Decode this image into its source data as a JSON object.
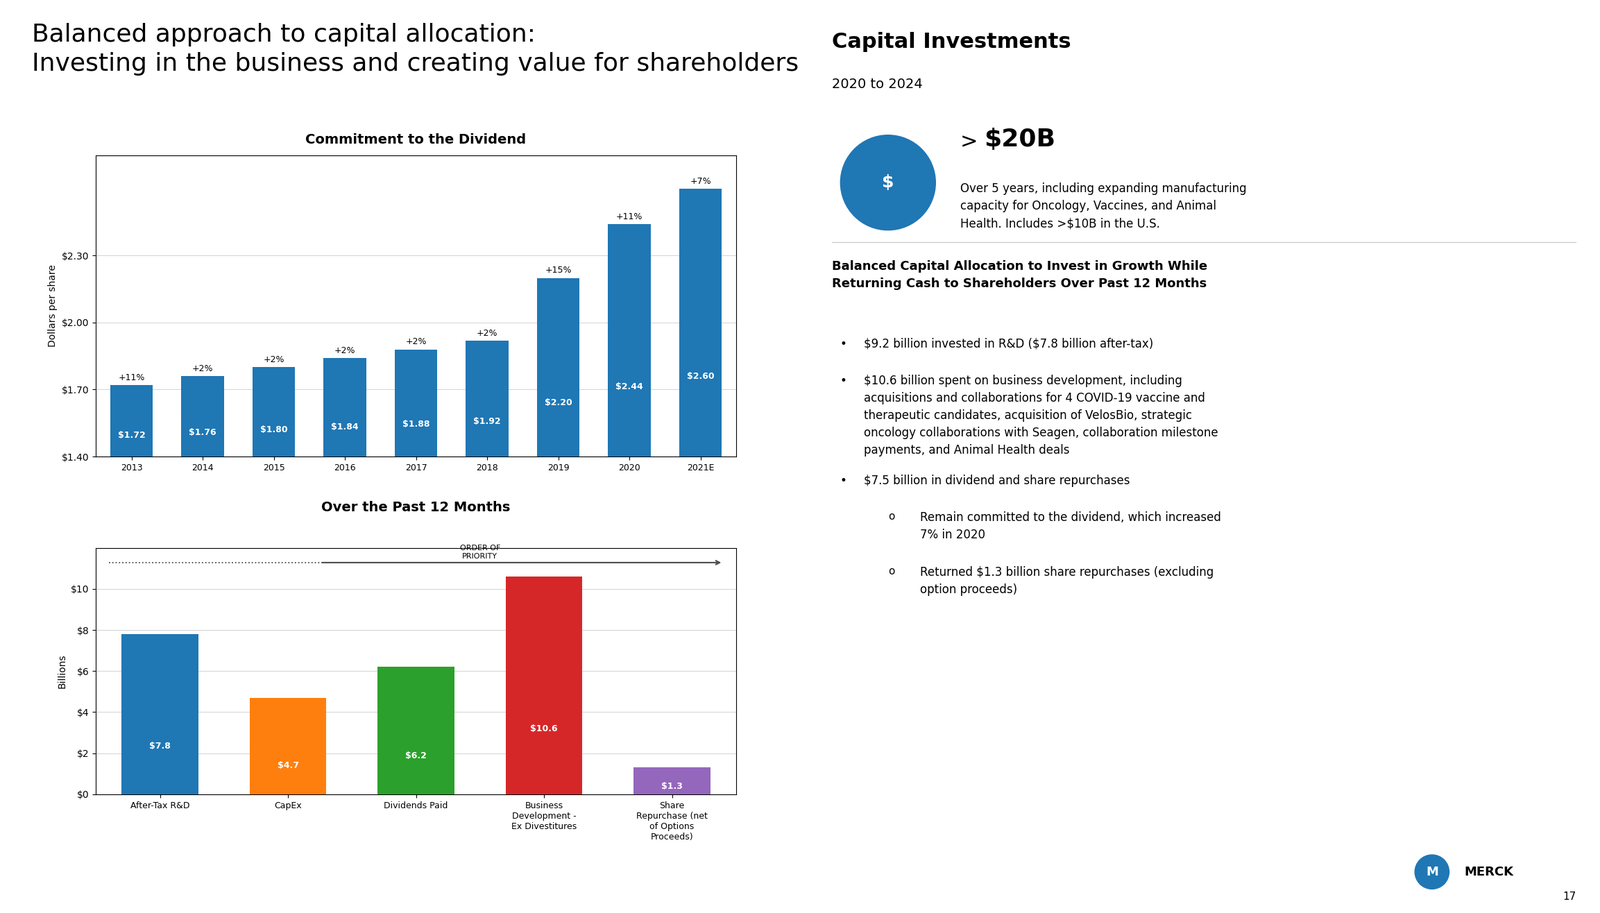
{
  "title": "Balanced approach to capital allocation:\nInvesting in the business and creating value for shareholders",
  "annotations": [
    "Capital Investments",
    "2020 to 2024",
    "$",
    ">",
    "$20B",
    "Over 5 years, including expanding manufacturing\ncapacity for Oncology, Vaccines, and Animal\nHealth. Includes >$10B in the U.S.",
    "Balanced Capital Allocation to Invest in Growth While\nReturning Cash to Shareholders Over Past 12 Months",
    "•",
    "$9.2 billion invested in R&D ($7.8 billion after-tax)",
    "•",
    "$10.6 billion spent on business development, including\nacquisitions and collaborations for 4 COVID-19 vaccine and\ntherapeutic candidates, acquisition of VelosBio, strategic\noncology collaborations with Seagen, collaboration milestone\npayments, and Animal Health deals",
    "•",
    "$7.5 billion in dividend and share repurchases",
    "o",
    "Remain committed to the dividend, which increased\n7% in 2020",
    "o",
    "Returned $1.3 billion share repurchases (excluding\noption proceeds)",
    "M",
    "MERCK",
    "17"
  ],
  "chart_data": [
    {
      "type": "bar",
      "title": "Commitment to the Dividend",
      "ylabel": "Dollars per share",
      "categories": [
        "2013",
        "2014",
        "2015",
        "2016",
        "2017",
        "2018",
        "2019",
        "2020",
        "2021E"
      ],
      "values": [
        1.72,
        1.76,
        1.8,
        1.84,
        1.88,
        1.92,
        2.2,
        2.44,
        2.6
      ],
      "value_labels": [
        "$1.72",
        "$1.76",
        "$1.80",
        "$1.84",
        "$1.88",
        "$1.92",
        "$2.20",
        "$2.44",
        "$2.60"
      ],
      "data_labels": true,
      "annotations": [
        "+11%",
        "+2%",
        "+2%",
        "+2%",
        "+2%",
        "+2%",
        "+15%",
        "+11%",
        "+7%"
      ],
      "ylim": [
        1.4,
        2.75
      ],
      "yticks": [
        {
          "value": 1.4,
          "label": "$1.40"
        },
        {
          "value": 1.7,
          "label": "$1.70"
        },
        {
          "value": 2.0,
          "label": "$2.00"
        },
        {
          "value": 2.3,
          "label": "$2.30"
        }
      ],
      "grid": true
    },
    {
      "type": "bar",
      "title": "Over the Past 12 Months",
      "ylabel": "Billions",
      "categories": [
        "After-Tax R&D",
        "CapEx",
        "Dividends Paid",
        "Business\nDevelopment -\nEx Divestitures",
        "Share\nRepurchase (net\nof Options\nProceeds)"
      ],
      "values": [
        7.8,
        4.7,
        6.2,
        10.6,
        1.3
      ],
      "value_labels": [
        "$7.8",
        "$4.7",
        "$6.2",
        "$10.6",
        "$1.3"
      ],
      "data_labels": true,
      "colors": [
        "#1f77b4",
        "#ff7f0e",
        "#2ca02c",
        "#d62728",
        "#9467bd"
      ],
      "annotations": [
        "ORDER OF\nPRIORITY"
      ],
      "ylim": [
        0,
        12
      ],
      "yticks": [
        {
          "value": 0,
          "label": "$0"
        },
        {
          "value": 2,
          "label": "$2"
        },
        {
          "value": 4,
          "label": "$4"
        },
        {
          "value": 6,
          "label": "$6"
        },
        {
          "value": 8,
          "label": "$8"
        },
        {
          "value": 10,
          "label": "$10"
        }
      ],
      "grid": true
    }
  ]
}
